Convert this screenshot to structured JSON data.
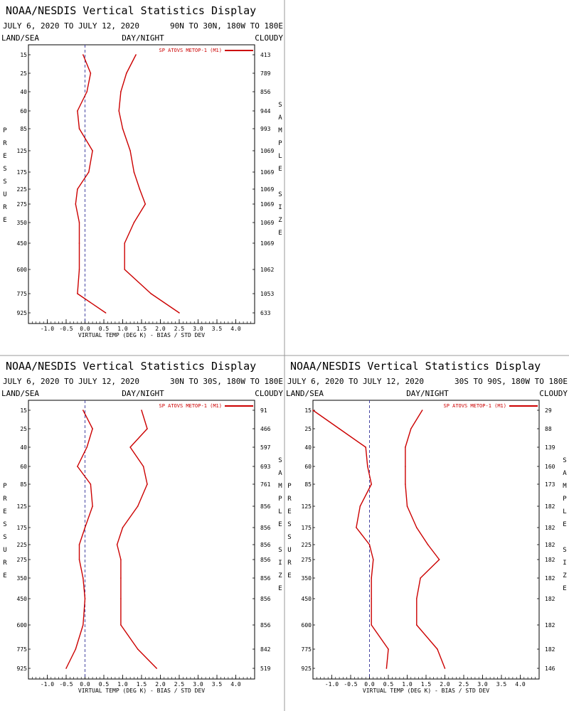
{
  "colors": {
    "series": "#cc0000",
    "zero_line": "#333399",
    "frame": "#000000"
  },
  "chart_data": [
    {
      "type": "line",
      "title": "NOAA/NESDIS Vertical Statistics Display",
      "date_range": "JULY 6, 2020 TO JULY 12, 2020",
      "region": "90N TO 30N, 180W TO 180E",
      "top_left_label": "LAND/SEA",
      "top_center_label": "DAY/NIGHT",
      "top_right_label": "CLOUDY",
      "xlabel": "VIRTUAL TEMP (DEG K) - BIAS / STD DEV",
      "ylabel": "PRESSURE",
      "y2label": "SAMPLE SIZE",
      "legend": "SP ATOVS METOP-1 (M1)",
      "xlim": [
        -1.5,
        4.5
      ],
      "xticks": [
        "-1.0",
        "-0.5",
        "0.0",
        "0.5",
        "1.0",
        "1.5",
        "2.0",
        "2.5",
        "3.0",
        "3.5",
        "4.0"
      ],
      "pressure_levels": [
        "15",
        "25",
        "40",
        "60",
        "85",
        "125",
        "175",
        "225",
        "275",
        "350",
        "450",
        "600",
        "775",
        "925"
      ],
      "sample_size": [
        "413",
        "789",
        "856",
        "944",
        "993",
        "1069",
        "1069",
        "1069",
        "1069",
        "1069",
        "1069",
        "1062",
        "1053",
        "633"
      ],
      "series": [
        {
          "name": "bias",
          "values": [
            -0.05,
            0.15,
            0.05,
            -0.2,
            -0.15,
            0.2,
            0.1,
            -0.2,
            -0.25,
            -0.15,
            -0.15,
            -0.15,
            -0.2,
            0.55
          ]
        },
        {
          "name": "std_dev",
          "values": [
            1.35,
            1.1,
            0.95,
            0.9,
            1.0,
            1.2,
            1.3,
            1.45,
            1.6,
            1.3,
            1.05,
            1.05,
            1.75,
            2.5
          ]
        }
      ]
    },
    {
      "type": "line",
      "title": "NOAA/NESDIS Vertical Statistics Display",
      "date_range": "JULY 6, 2020 TO JULY 12, 2020",
      "region": "30N TO 30S, 180W TO 180E",
      "top_left_label": "LAND/SEA",
      "top_center_label": "DAY/NIGHT",
      "top_right_label": "CLOUDY",
      "xlabel": "VIRTUAL TEMP (DEG K) - BIAS / STD DEV",
      "ylabel": "PRESSURE",
      "y2label": "SAMPLE SIZE",
      "legend": "SP ATOVS METOP-1 (M1)",
      "xlim": [
        -1.5,
        4.5
      ],
      "xticks": [
        "-1.0",
        "-0.5",
        "0.0",
        "0.5",
        "1.0",
        "1.5",
        "2.0",
        "2.5",
        "3.0",
        "3.5",
        "4.0"
      ],
      "pressure_levels": [
        "15",
        "25",
        "40",
        "60",
        "85",
        "125",
        "175",
        "225",
        "275",
        "350",
        "450",
        "600",
        "775",
        "925"
      ],
      "sample_size": [
        "91",
        "466",
        "597",
        "693",
        "761",
        "856",
        "856",
        "856",
        "856",
        "856",
        "856",
        "856",
        "842",
        "519"
      ],
      "series": [
        {
          "name": "bias",
          "values": [
            -0.05,
            0.2,
            0.05,
            -0.2,
            0.15,
            0.2,
            0.0,
            -0.15,
            -0.15,
            -0.05,
            0.0,
            -0.05,
            -0.25,
            -0.5
          ]
        },
        {
          "name": "std_dev",
          "values": [
            1.5,
            1.65,
            1.2,
            1.55,
            1.65,
            1.4,
            1.0,
            0.85,
            0.95,
            0.95,
            0.95,
            0.95,
            1.4,
            1.9
          ]
        }
      ]
    },
    {
      "type": "line",
      "title": "NOAA/NESDIS Vertical Statistics Display",
      "date_range": "JULY 6, 2020 TO JULY 12, 2020",
      "region": "30S TO 90S, 180W TO 180E",
      "top_left_label": "LAND/SEA",
      "top_center_label": "DAY/NIGHT",
      "top_right_label": "CLOUDY",
      "xlabel": "VIRTUAL TEMP (DEG K) - BIAS / STD DEV",
      "ylabel": "PRESSURE",
      "y2label": "SAMPLE SIZE",
      "legend": "SP ATOVS METOP-1 (M1)",
      "xlim": [
        -1.5,
        4.5
      ],
      "xticks": [
        "-1.0",
        "-0.5",
        "0.0",
        "0.5",
        "1.0",
        "1.5",
        "2.0",
        "2.5",
        "3.0",
        "3.5",
        "4.0"
      ],
      "pressure_levels": [
        "15",
        "25",
        "40",
        "60",
        "85",
        "125",
        "175",
        "225",
        "275",
        "350",
        "450",
        "600",
        "775",
        "925"
      ],
      "sample_size": [
        "29",
        "88",
        "139",
        "160",
        "173",
        "182",
        "182",
        "182",
        "182",
        "182",
        "182",
        "182",
        "182",
        "146"
      ],
      "series": [
        {
          "name": "bias",
          "values": [
            -1.5,
            -0.8,
            -0.1,
            -0.05,
            0.05,
            -0.25,
            -0.35,
            0.0,
            0.1,
            0.05,
            0.05,
            0.05,
            0.5,
            0.45
          ]
        },
        {
          "name": "std_dev",
          "values": [
            1.4,
            1.1,
            0.95,
            0.95,
            0.95,
            1.0,
            1.25,
            1.55,
            1.85,
            1.35,
            1.25,
            1.25,
            1.8,
            2.0
          ]
        }
      ]
    }
  ]
}
